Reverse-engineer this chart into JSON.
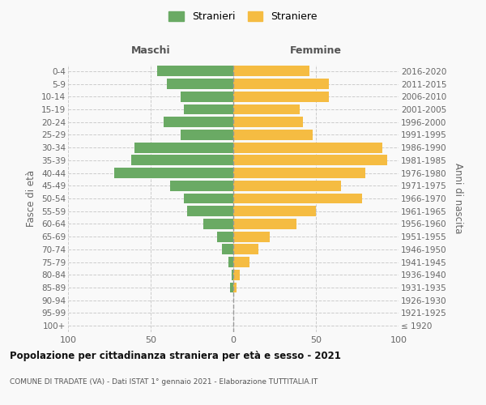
{
  "age_groups": [
    "100+",
    "95-99",
    "90-94",
    "85-89",
    "80-84",
    "75-79",
    "70-74",
    "65-69",
    "60-64",
    "55-59",
    "50-54",
    "45-49",
    "40-44",
    "35-39",
    "30-34",
    "25-29",
    "20-24",
    "15-19",
    "10-14",
    "5-9",
    "0-4"
  ],
  "birth_years": [
    "≤ 1920",
    "1921-1925",
    "1926-1930",
    "1931-1935",
    "1936-1940",
    "1941-1945",
    "1946-1950",
    "1951-1955",
    "1956-1960",
    "1961-1965",
    "1966-1970",
    "1971-1975",
    "1976-1980",
    "1981-1985",
    "1986-1990",
    "1991-1995",
    "1996-2000",
    "2001-2005",
    "2006-2010",
    "2011-2015",
    "2016-2020"
  ],
  "maschi": [
    0,
    0,
    0,
    2,
    1,
    3,
    7,
    10,
    18,
    28,
    30,
    38,
    72,
    62,
    60,
    32,
    42,
    30,
    32,
    40,
    46
  ],
  "femmine": [
    0,
    0,
    0,
    2,
    4,
    10,
    15,
    22,
    38,
    50,
    78,
    65,
    80,
    93,
    90,
    48,
    42,
    40,
    58,
    58,
    46
  ],
  "maschi_color": "#6aaa64",
  "femmine_color": "#f5bc42",
  "background_color": "#f9f9f9",
  "grid_color": "#cccccc",
  "xlim": 100,
  "title": "Popolazione per cittadinanza straniera per età e sesso - 2021",
  "subtitle": "COMUNE DI TRADATE (VA) - Dati ISTAT 1° gennaio 2021 - Elaborazione TUTTITALIA.IT",
  "xlabel_left": "Maschi",
  "xlabel_right": "Femmine",
  "ylabel_left": "Fasce di età",
  "ylabel_right": "Anni di nascita",
  "legend_maschi": "Stranieri",
  "legend_femmine": "Straniere"
}
